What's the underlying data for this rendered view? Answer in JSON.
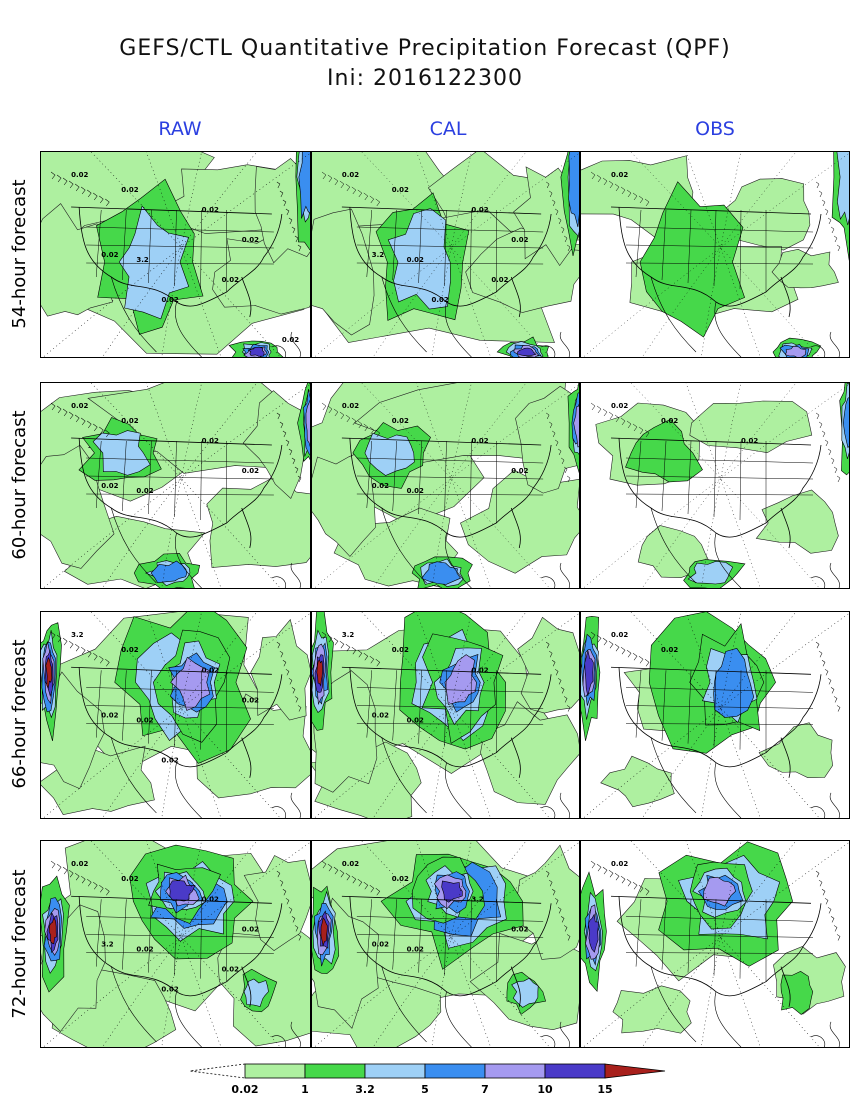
{
  "title": "GEFS/CTL Quantitative Precipitation Forecast (QPF)",
  "subtitle": "Ini: 2016122300",
  "columns": [
    "RAW",
    "CAL",
    "OBS"
  ],
  "rows": [
    "54-hour forecast",
    "60-hour forecast",
    "66-hour forecast",
    "72-hour forecast"
  ],
  "colorbar": {
    "levels": [
      "0.02",
      "1",
      "3.2",
      "5",
      "7",
      "10",
      "15"
    ],
    "colors": [
      "#aef0a0",
      "#46d84a",
      "#9ed0f6",
      "#3a8ef0",
      "#a59af0",
      "#4a3ac8",
      "#a8201c"
    ]
  },
  "contour_labels": {
    "r0c0": [
      "0.02",
      "0.02",
      "0.02",
      "0.02",
      "3.2",
      "0.02",
      "0.02",
      "0.02",
      "0.02"
    ],
    "r0c1": [
      "0.02",
      "0.02",
      "0.02",
      "3.2",
      "0.02",
      "0.02",
      "0.02",
      "0.02"
    ],
    "r0c2": [
      "0.02"
    ],
    "r1c0": [
      "0.02",
      "0.02",
      "0.02",
      "0.02",
      "0.02",
      "0.02"
    ],
    "r1c1": [
      "0.02",
      "0.02",
      "0.02",
      "0.02",
      "0.02",
      "0.02"
    ],
    "r1c2": [
      "0.02",
      "0.02",
      "0.02"
    ],
    "r2c0": [
      "3.2",
      "0.02",
      "0.02",
      "0.02",
      "0.02",
      "0.02",
      "0.02"
    ],
    "r2c1": [
      "3.2",
      "0.02",
      "0.02",
      "0.02",
      "0.02"
    ],
    "r2c2": [
      "0.02",
      "0.02"
    ],
    "r3c0": [
      "0.02",
      "0.02",
      "0.02",
      "3.2",
      "0.02",
      "0.02",
      "0.02",
      "0.02"
    ],
    "r3c1": [
      "0.02",
      "0.02",
      "3.2",
      "0.02",
      "0.02",
      "0.02"
    ],
    "r3c2": [
      "0.02"
    ]
  }
}
